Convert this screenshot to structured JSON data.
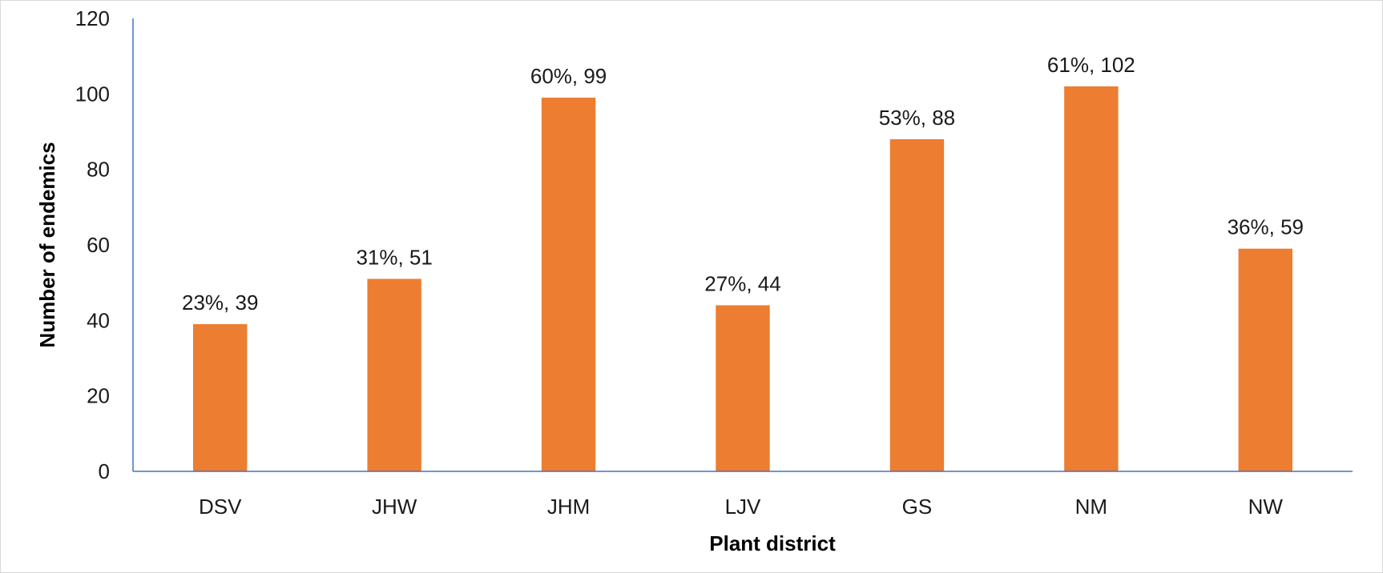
{
  "chart_data": {
    "type": "bar",
    "title": "",
    "xlabel": "Plant district",
    "ylabel": "Number of endemics",
    "ylim": [
      0,
      120
    ],
    "yticks": [
      "0",
      "20",
      "40",
      "60",
      "80",
      "100",
      "120"
    ],
    "categories": [
      "DSV",
      "JHW",
      "JHM",
      "LJV",
      "GS",
      "NM",
      "NW"
    ],
    "values": [
      39,
      51,
      99,
      44,
      88,
      102,
      59
    ],
    "data_labels": [
      "23%, 39",
      "31%, 51",
      "60%, 99",
      "27%, 44",
      "53%, 88",
      "61%, 102",
      "36%, 59"
    ],
    "grid": false,
    "legend": "none",
    "colors": {
      "bar": "#ED7D31",
      "axis": "#4472C4"
    }
  }
}
